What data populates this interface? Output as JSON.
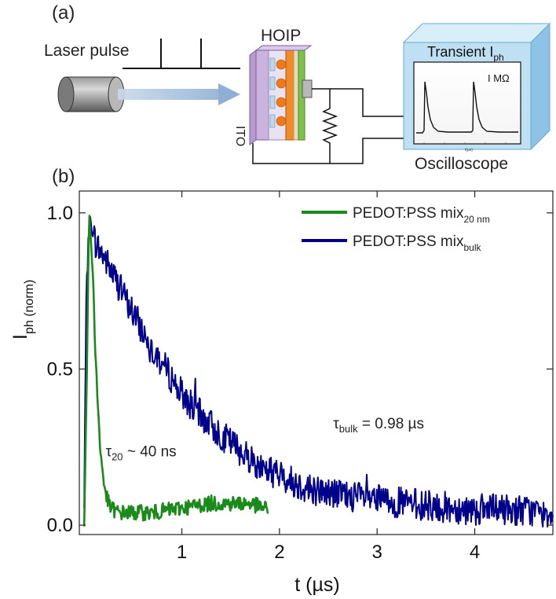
{
  "panel_a": {
    "label": "(a)",
    "laser_label": "Laser pulse",
    "hoip_label": "HOIP",
    "ito_label": "ITO",
    "scope_title": "Transient I",
    "scope_title_sub": "ph",
    "resistance_label": "I MΩ",
    "scope_axis_label": "t(µs)",
    "oscilloscope_label": "Oscilloscope"
  },
  "panel_b": {
    "label": "(b)"
  },
  "colors": {
    "green": "#1a8a1a",
    "blue": "#00008b",
    "scope_face": "#bfe0f2",
    "scope_side": "#8cc3e6",
    "scope_top": "#d8eef9"
  },
  "chart_data": {
    "type": "line",
    "title": "",
    "xlabel": "t (µs)",
    "ylabel_main": "I",
    "ylabel_sub": "ph (norm)",
    "xlim": [
      -0.05,
      4.8
    ],
    "ylim": [
      -0.03,
      1.07
    ],
    "xticks": [
      1,
      2,
      3,
      4
    ],
    "yticks": [
      0.0,
      0.5,
      1.0
    ],
    "ytick_labels": [
      "0.0",
      "0.5",
      "1.0"
    ],
    "legend_position": "top-right",
    "series": [
      {
        "name": "PEDOT:PSS mix",
        "name_sub": "20 nm",
        "color": "#1a8a1a",
        "x": [
          0.0,
          0.03,
          0.05,
          0.07,
          0.09,
          0.11,
          0.13,
          0.15,
          0.17,
          0.2,
          0.23,
          0.26,
          0.3,
          0.35,
          0.5,
          0.7,
          0.9,
          1.1,
          1.3,
          1.5,
          1.7,
          1.88
        ],
        "y": [
          0.0,
          0.55,
          1.0,
          0.9,
          0.8,
          0.6,
          0.45,
          0.32,
          0.22,
          0.14,
          0.09,
          0.06,
          0.05,
          0.04,
          0.04,
          0.04,
          0.05,
          0.06,
          0.07,
          0.07,
          0.07,
          0.05
        ]
      },
      {
        "name": "PEDOT:PSS mix",
        "name_sub": "bulk",
        "color": "#00008b",
        "x": [
          0.0,
          0.02,
          0.04,
          0.06,
          0.08,
          0.12,
          0.2,
          0.3,
          0.4,
          0.5,
          0.6,
          0.75,
          0.9,
          1.0,
          1.2,
          1.4,
          1.6,
          1.8,
          2.0,
          2.2,
          2.4,
          2.6,
          2.8,
          3.0,
          3.3,
          3.6,
          4.0,
          4.4,
          4.8
        ],
        "y": [
          0.05,
          0.7,
          0.92,
          0.98,
          0.95,
          0.9,
          0.86,
          0.8,
          0.74,
          0.68,
          0.62,
          0.54,
          0.47,
          0.42,
          0.35,
          0.29,
          0.24,
          0.19,
          0.16,
          0.13,
          0.11,
          0.1,
          0.09,
          0.08,
          0.07,
          0.06,
          0.05,
          0.05,
          0.04
        ]
      }
    ],
    "annotations": [
      {
        "text": "τ",
        "sub": "20",
        "tail": " ~ 40 ns",
        "x": 0.22,
        "y": 0.22
      },
      {
        "text": "τ",
        "sub": "bulk",
        "tail": " = 0.98 µs",
        "x": 2.55,
        "y": 0.31
      }
    ]
  }
}
